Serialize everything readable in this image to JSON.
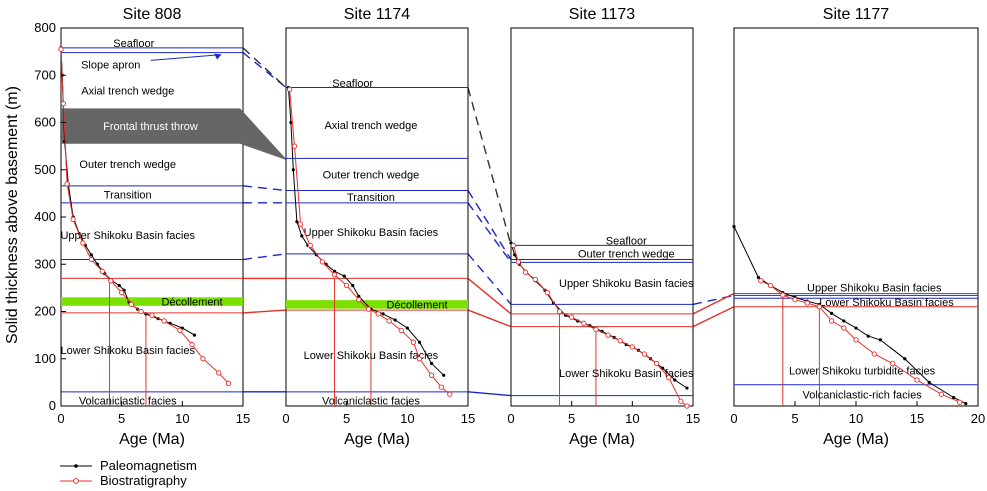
{
  "chart_data": {
    "type": "line",
    "ylabel": "Solid thickness above basement (m)",
    "ylim": [
      0,
      800
    ],
    "yticks": [
      0,
      100,
      200,
      300,
      400,
      500,
      600,
      700,
      800
    ],
    "legend": {
      "placement": "bottom-left",
      "entries": [
        {
          "label": "Paleomagnetism",
          "color": "#000000",
          "marker": "filled-dot"
        },
        {
          "label": "Biostratigraphy",
          "color": "#e8302a",
          "marker": "open-circle"
        }
      ]
    },
    "colors": {
      "unit_boundary": "#1a28c8",
      "age_guide": "#e8302a",
      "decollement": "#7ce000",
      "thrust_throw": "#666666",
      "correlation_black": "#333333"
    },
    "panels": [
      {
        "title": "Site 808",
        "xlabel": "Age (Ma)",
        "xlim": [
          0,
          15
        ],
        "xticks": [
          0,
          5,
          10,
          15
        ],
        "boundaries": [
          {
            "y": 758,
            "color": "blue"
          },
          {
            "y": 748,
            "color": "blue"
          },
          {
            "y": 466,
            "color": "blue"
          },
          {
            "y": 430,
            "color": "blue"
          },
          {
            "y": 310,
            "color": "blue"
          },
          {
            "y": 270,
            "color": "red"
          },
          {
            "y": 197,
            "color": "red"
          },
          {
            "y": 30,
            "color": "blue"
          }
        ],
        "decollement": {
          "y0": 212,
          "y1": 230,
          "label": "Décollement"
        },
        "thrust_throw": {
          "y0": 555,
          "y1": 630,
          "label": "Frontal thrust throw"
        },
        "age_guides": [
          {
            "age": 4,
            "y": 270
          },
          {
            "age": 7,
            "y": 197
          }
        ],
        "units": [
          {
            "label": "Seafloor",
            "age": 6,
            "y": 768
          },
          {
            "label": "Slope apron",
            "age": 4.1,
            "y": 723
          },
          {
            "label": "Axial trench wedge",
            "age": 5.5,
            "y": 668
          },
          {
            "label": "Outer trench wedge",
            "age": 5.5,
            "y": 512
          },
          {
            "label": "Transition",
            "age": 5.5,
            "y": 448
          },
          {
            "label": "Upper Shikoku Basin facies",
            "age": 5.5,
            "y": 362
          },
          {
            "label": "Lower Shikoku Basin facies",
            "age": 5.5,
            "y": 118
          },
          {
            "label": "Volcaniclastic facies",
            "age": 5.5,
            "y": 12
          }
        ],
        "paleomag": {
          "x": [
            0,
            0.1,
            0.3,
            0.6,
            1.0,
            1.5,
            2.0,
            2.5,
            3.0,
            3.6,
            4.2,
            4.8,
            5.2,
            5.6,
            6.3,
            7.0,
            8.0,
            9.0,
            10.0,
            11.0
          ],
          "y": [
            758,
            700,
            560,
            470,
            400,
            365,
            340,
            320,
            300,
            280,
            265,
            255,
            245,
            220,
            205,
            195,
            185,
            175,
            165,
            150
          ]
        },
        "biostrat": {
          "x": [
            0,
            0.2,
            0.5,
            1.0,
            1.8,
            2.5,
            3.4,
            4.1,
            5.0,
            5.8,
            6.6,
            7.5,
            8.5,
            9.8,
            10.8,
            11.7,
            13.0,
            13.8
          ],
          "y": [
            755,
            640,
            470,
            395,
            345,
            310,
            285,
            265,
            240,
            215,
            200,
            192,
            180,
            160,
            130,
            100,
            70,
            48
          ]
        }
      },
      {
        "title": "Site 1174",
        "xlabel": "Age (Ma)",
        "xlim": [
          0,
          15
        ],
        "xticks": [
          0,
          5,
          10,
          15
        ],
        "boundaries": [
          {
            "y": 674,
            "color": "blue"
          },
          {
            "y": 524,
            "color": "blue"
          },
          {
            "y": 456,
            "color": "blue"
          },
          {
            "y": 430,
            "color": "blue"
          },
          {
            "y": 322,
            "color": "blue"
          },
          {
            "y": 270,
            "color": "red"
          },
          {
            "y": 203,
            "color": "red"
          },
          {
            "y": 30,
            "color": "blue"
          }
        ],
        "decollement": {
          "y0": 206,
          "y1": 224,
          "label": "Décollement"
        },
        "age_guides": [
          {
            "age": 4,
            "y": 270
          },
          {
            "age": 7,
            "y": 203
          }
        ],
        "units": [
          {
            "label": "Seafloor",
            "age": 5.5,
            "y": 684
          },
          {
            "label": "Axial trench wedge",
            "age": 7,
            "y": 595
          },
          {
            "label": "Outer trench wedge",
            "age": 7,
            "y": 490
          },
          {
            "label": "Transition",
            "age": 7,
            "y": 442
          },
          {
            "label": "Upper Shikoku Basin facies",
            "age": 7,
            "y": 368
          },
          {
            "label": "Lower Shikoku Basin facies",
            "age": 7,
            "y": 108
          },
          {
            "label": "Volcaniclastic facies",
            "age": 7,
            "y": 12
          }
        ],
        "paleomag": {
          "x": [
            0.2,
            0.4,
            0.6,
            0.9,
            1.3,
            1.8,
            2.5,
            3.3,
            4.0,
            4.8,
            5.5,
            6.0,
            7.0,
            8.0,
            9.0,
            10.0,
            11.0,
            12.0,
            13.0
          ],
          "y": [
            674,
            600,
            500,
            390,
            360,
            340,
            320,
            300,
            285,
            275,
            255,
            232,
            205,
            195,
            182,
            165,
            135,
            90,
            65
          ]
        },
        "biostrat": {
          "x": [
            0.3,
            0.7,
            1.2,
            2.0,
            3.0,
            4.0,
            5.0,
            6.0,
            6.8,
            7.6,
            8.5,
            9.5,
            10.5,
            11.0,
            12.0,
            12.8,
            13.5
          ],
          "y": [
            670,
            550,
            385,
            340,
            305,
            278,
            255,
            225,
            205,
            195,
            180,
            160,
            135,
            100,
            65,
            40,
            25
          ]
        }
      },
      {
        "title": "Site 1173",
        "xlabel": "Age (Ma)",
        "xlim": [
          0,
          15
        ],
        "xticks": [
          0,
          5,
          10,
          15
        ],
        "boundaries": [
          {
            "y": 340,
            "color": "black"
          },
          {
            "y": 310,
            "color": "blue"
          },
          {
            "y": 304,
            "color": "blue"
          },
          {
            "y": 215,
            "color": "blue"
          },
          {
            "y": 195,
            "color": "red"
          },
          {
            "y": 168,
            "color": "red"
          },
          {
            "y": 22,
            "color": "blue"
          }
        ],
        "age_guides": [
          {
            "age": 4,
            "y": 195
          },
          {
            "age": 7,
            "y": 168
          }
        ],
        "units": [
          {
            "label": "Seafloor",
            "age": 9.5,
            "y": 350
          },
          {
            "label": "Outer trench wedge",
            "age": 9.5,
            "y": 323
          },
          {
            "label": "Upper Shikoku Basin facies",
            "age": 9.5,
            "y": 260
          },
          {
            "label": "Lower Shikoku Basin facies",
            "age": 9.5,
            "y": 70
          }
        ],
        "paleomag": {
          "x": [
            0,
            0.3,
            0.7,
            1.2,
            2.0,
            2.8,
            3.5,
            4.5,
            5.5,
            6.5,
            7.5,
            8.5,
            9.5,
            10.5,
            11.5,
            12.5,
            13.5,
            14.5
          ],
          "y": [
            345,
            320,
            300,
            285,
            265,
            245,
            218,
            192,
            180,
            170,
            158,
            145,
            130,
            118,
            100,
            80,
            55,
            38
          ]
        },
        "biostrat": {
          "x": [
            0.2,
            0.6,
            1.2,
            2.0,
            3.0,
            4.0,
            5.0,
            6.0,
            7.0,
            8.0,
            9.0,
            10.0,
            11.0,
            12.0,
            13.0,
            14.0,
            14.5
          ],
          "y": [
            340,
            305,
            283,
            268,
            240,
            200,
            188,
            175,
            162,
            150,
            138,
            125,
            110,
            90,
            60,
            10,
            0
          ]
        }
      },
      {
        "title": "Site 1177",
        "xlabel": "Age (Ma)",
        "xlim": [
          0,
          20
        ],
        "xticks": [
          0,
          5,
          10,
          15,
          20
        ],
        "boundaries": [
          {
            "y": 238,
            "color": "red"
          },
          {
            "y": 234,
            "color": "blue"
          },
          {
            "y": 228,
            "color": "blue"
          },
          {
            "y": 210,
            "color": "red"
          },
          {
            "y": 45,
            "color": "blue"
          }
        ],
        "age_guides": [
          {
            "age": 4,
            "y": 238
          },
          {
            "age": 7,
            "y": 210
          }
        ],
        "units": [
          {
            "label": "Upper Shikoku Basin facies",
            "age": 11.5,
            "y": 251
          },
          {
            "label": "Lower Shikoku Basin facies",
            "age": 12.5,
            "y": 220
          },
          {
            "label": "Lower Shikoku turbidite facies",
            "age": 10.5,
            "y": 75
          },
          {
            "label": "Volcaniclastic-rich facies",
            "age": 10.5,
            "y": 24
          }
        ],
        "paleomag": {
          "x": [
            0,
            2.0,
            3.0,
            4.0,
            5.0,
            6.0,
            7.0,
            8.0,
            9.0,
            10.0,
            11.0,
            12.0,
            14.0,
            16.0,
            18.0,
            19.0
          ],
          "y": [
            380,
            272,
            255,
            240,
            230,
            222,
            215,
            196,
            180,
            165,
            148,
            140,
            100,
            50,
            18,
            5
          ]
        },
        "biostrat": {
          "x": [
            2.2,
            3.0,
            4.0,
            5.0,
            6.0,
            7.0,
            8.0,
            9.0,
            10.0,
            11.5,
            13.0,
            15.0,
            17.0,
            18.5
          ],
          "y": [
            265,
            255,
            235,
            225,
            218,
            210,
            180,
            165,
            140,
            110,
            90,
            55,
            25,
            8
          ]
        }
      }
    ],
    "correlations": [
      {
        "from": [
          0,
          748
        ],
        "to": [
          1,
          674
        ],
        "color": "blue",
        "dashed": true
      },
      {
        "from": [
          0,
          758
        ],
        "to": [
          1,
          674
        ],
        "color": "black",
        "dashed": true
      },
      {
        "from": [
          0,
          466
        ],
        "to": [
          1,
          456
        ],
        "color": "blue",
        "dashed": true
      },
      {
        "from": [
          0,
          430
        ],
        "to": [
          1,
          430
        ],
        "color": "blue",
        "dashed": true
      },
      {
        "from": [
          0,
          310
        ],
        "to": [
          1,
          322
        ],
        "color": "blue",
        "dashed": true
      },
      {
        "from": [
          0,
          270
        ],
        "to": [
          1,
          270
        ],
        "color": "red",
        "dashed": false
      },
      {
        "from": [
          0,
          197
        ],
        "to": [
          1,
          203
        ],
        "color": "red",
        "dashed": false
      },
      {
        "from": [
          0,
          30
        ],
        "to": [
          1,
          30
        ],
        "color": "blue",
        "dashed": false
      },
      {
        "from": [
          1,
          674
        ],
        "to": [
          2,
          340
        ],
        "color": "black",
        "dashed": true
      },
      {
        "from": [
          1,
          456
        ],
        "to": [
          2,
          310
        ],
        "color": "blue",
        "dashed": true
      },
      {
        "from": [
          1,
          430
        ],
        "to": [
          2,
          304
        ],
        "color": "blue",
        "dashed": true
      },
      {
        "from": [
          1,
          322
        ],
        "to": [
          2,
          215
        ],
        "color": "blue",
        "dashed": true
      },
      {
        "from": [
          1,
          270
        ],
        "to": [
          2,
          195
        ],
        "color": "red",
        "dashed": false
      },
      {
        "from": [
          1,
          203
        ],
        "to": [
          2,
          168
        ],
        "color": "red",
        "dashed": false
      },
      {
        "from": [
          1,
          30
        ],
        "to": [
          2,
          22
        ],
        "color": "blue",
        "dashed": false
      },
      {
        "from": [
          2,
          215
        ],
        "to": [
          3,
          234
        ],
        "color": "blue",
        "dashed": true
      },
      {
        "from": [
          2,
          195
        ],
        "to": [
          3,
          238
        ],
        "color": "red",
        "dashed": false
      },
      {
        "from": [
          2,
          168
        ],
        "to": [
          3,
          210
        ],
        "color": "red",
        "dashed": false
      }
    ]
  }
}
